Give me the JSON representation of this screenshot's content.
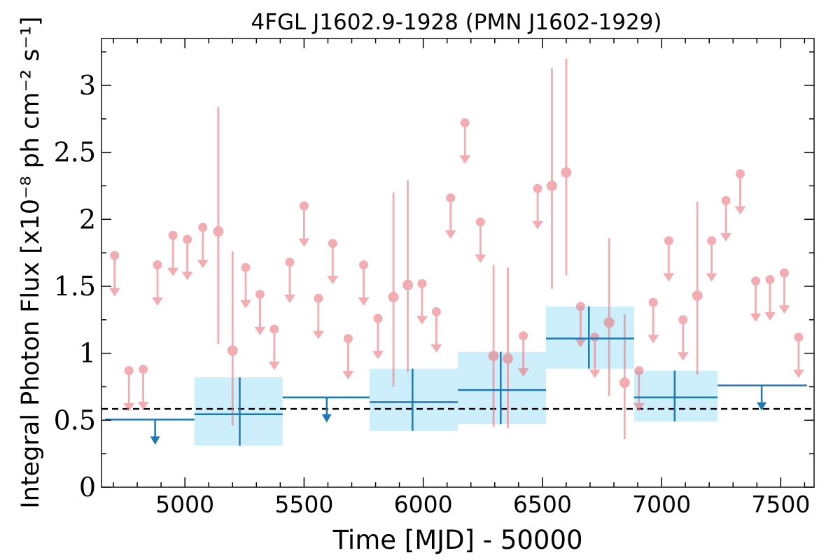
{
  "chart_data": {
    "type": "scatter",
    "title": "4FGL J1602.9-1928 (PMN J1602-1929)",
    "xlabel": "Time [MJD] - 50000",
    "ylabel": "Integral Photon Flux [x10⁻⁸ ph cm⁻² s⁻¹]",
    "xlim": [
      4650,
      7640
    ],
    "ylim": [
      0,
      3.35
    ],
    "x_ticks": [
      5000,
      5500,
      6000,
      6500,
      7000,
      7500
    ],
    "x_tick_labels": [
      "5000",
      "5500",
      "6000",
      "6500",
      "7000",
      "7500"
    ],
    "y_ticks": [
      0,
      0.5,
      1,
      1.5,
      2,
      2.5,
      3
    ],
    "y_tick_labels": [
      "0",
      "0.5",
      "1",
      "1.5",
      "2",
      "2.5",
      "3"
    ],
    "grid": false,
    "reference_line": {
      "y": 0.585,
      "style": "dashed",
      "color": "#000000"
    },
    "colors": {
      "fine": "#e8777e",
      "coarse": "#1f77b4",
      "band": "#cdeefb",
      "reference": "#000000"
    },
    "series": [
      {
        "bin_halfwidth": 29,
        "upper_limits": [
          {
            "x": 4705,
            "y": 1.73
          },
          {
            "x": 4765,
            "y": 0.87
          },
          {
            "x": 4825,
            "y": 0.88
          },
          {
            "x": 4885,
            "y": 1.66
          },
          {
            "x": 4950,
            "y": 1.88
          },
          {
            "x": 5010,
            "y": 1.85
          },
          {
            "x": 5075,
            "y": 1.94
          },
          {
            "x": 5255,
            "y": 1.64
          },
          {
            "x": 5315,
            "y": 1.44
          },
          {
            "x": 5375,
            "y": 1.18
          },
          {
            "x": 5440,
            "y": 1.68
          },
          {
            "x": 5500,
            "y": 2.1
          },
          {
            "x": 5560,
            "y": 1.41
          },
          {
            "x": 5620,
            "y": 1.82
          },
          {
            "x": 5685,
            "y": 1.11
          },
          {
            "x": 5750,
            "y": 1.66
          },
          {
            "x": 5810,
            "y": 1.26
          },
          {
            "x": 5995,
            "y": 1.52
          },
          {
            "x": 6055,
            "y": 1.31
          },
          {
            "x": 6115,
            "y": 2.16
          },
          {
            "x": 6175,
            "y": 2.72
          },
          {
            "x": 6240,
            "y": 1.98
          },
          {
            "x": 6420,
            "y": 1.13
          },
          {
            "x": 6480,
            "y": 2.23
          },
          {
            "x": 6660,
            "y": 1.35
          },
          {
            "x": 6720,
            "y": 1.12
          },
          {
            "x": 6905,
            "y": 0.87
          },
          {
            "x": 6965,
            "y": 1.38
          },
          {
            "x": 7030,
            "y": 1.84
          },
          {
            "x": 7090,
            "y": 1.25
          },
          {
            "x": 7210,
            "y": 1.84
          },
          {
            "x": 7270,
            "y": 2.14
          },
          {
            "x": 7330,
            "y": 2.34
          },
          {
            "x": 7395,
            "y": 1.54
          },
          {
            "x": 7455,
            "y": 1.55
          },
          {
            "x": 7515,
            "y": 1.6
          },
          {
            "x": 7575,
            "y": 1.12
          }
        ],
        "detections": [
          {
            "x": 5140,
            "y": 1.91,
            "ylow": 1.07,
            "yhigh": 2.84
          },
          {
            "x": 5200,
            "y": 1.02,
            "ylow": 0.46,
            "yhigh": 1.76
          },
          {
            "x": 5875,
            "y": 1.42,
            "ylow": 0.75,
            "yhigh": 2.2
          },
          {
            "x": 5935,
            "y": 1.51,
            "ylow": 0.86,
            "yhigh": 2.29
          },
          {
            "x": 6295,
            "y": 0.98,
            "ylow": 0.45,
            "yhigh": 1.66
          },
          {
            "x": 6355,
            "y": 0.96,
            "ylow": 0.44,
            "yhigh": 1.64
          },
          {
            "x": 6540,
            "y": 2.25,
            "ylow": 1.48,
            "yhigh": 3.13
          },
          {
            "x": 6600,
            "y": 2.35,
            "ylow": 1.58,
            "yhigh": 3.2
          },
          {
            "x": 6780,
            "y": 1.23,
            "ylow": 0.68,
            "yhigh": 1.86
          },
          {
            "x": 6845,
            "y": 0.78,
            "ylow": 0.36,
            "yhigh": 1.29
          },
          {
            "x": 7150,
            "y": 1.43,
            "ylow": 0.84,
            "yhigh": 2.13
          }
        ]
      },
      {
        "upper_limits": [
          {
            "x0": 4665,
            "x1": 5040,
            "y": 0.505,
            "arrow_x": 4875
          },
          {
            "x0": 5410,
            "x1": 5775,
            "y": 0.67,
            "arrow_x": 5595
          },
          {
            "x0": 7235,
            "x1": 7610,
            "y": 0.76,
            "arrow_x": 7420
          }
        ],
        "detections": [
          {
            "x0": 5040,
            "x1": 5410,
            "x": 5230,
            "y": 0.545,
            "ylow": 0.31,
            "yhigh": 0.82
          },
          {
            "x0": 5775,
            "x1": 6145,
            "x": 5955,
            "y": 0.635,
            "ylow": 0.42,
            "yhigh": 0.885
          },
          {
            "x0": 6145,
            "x1": 6515,
            "x": 6325,
            "y": 0.725,
            "ylow": 0.47,
            "yhigh": 1.01
          },
          {
            "x0": 6515,
            "x1": 6885,
            "x": 6695,
            "y": 1.11,
            "ylow": 0.885,
            "yhigh": 1.35
          },
          {
            "x0": 6885,
            "x1": 7235,
            "x": 7055,
            "y": 0.67,
            "ylow": 0.49,
            "yhigh": 0.87
          }
        ]
      }
    ]
  }
}
